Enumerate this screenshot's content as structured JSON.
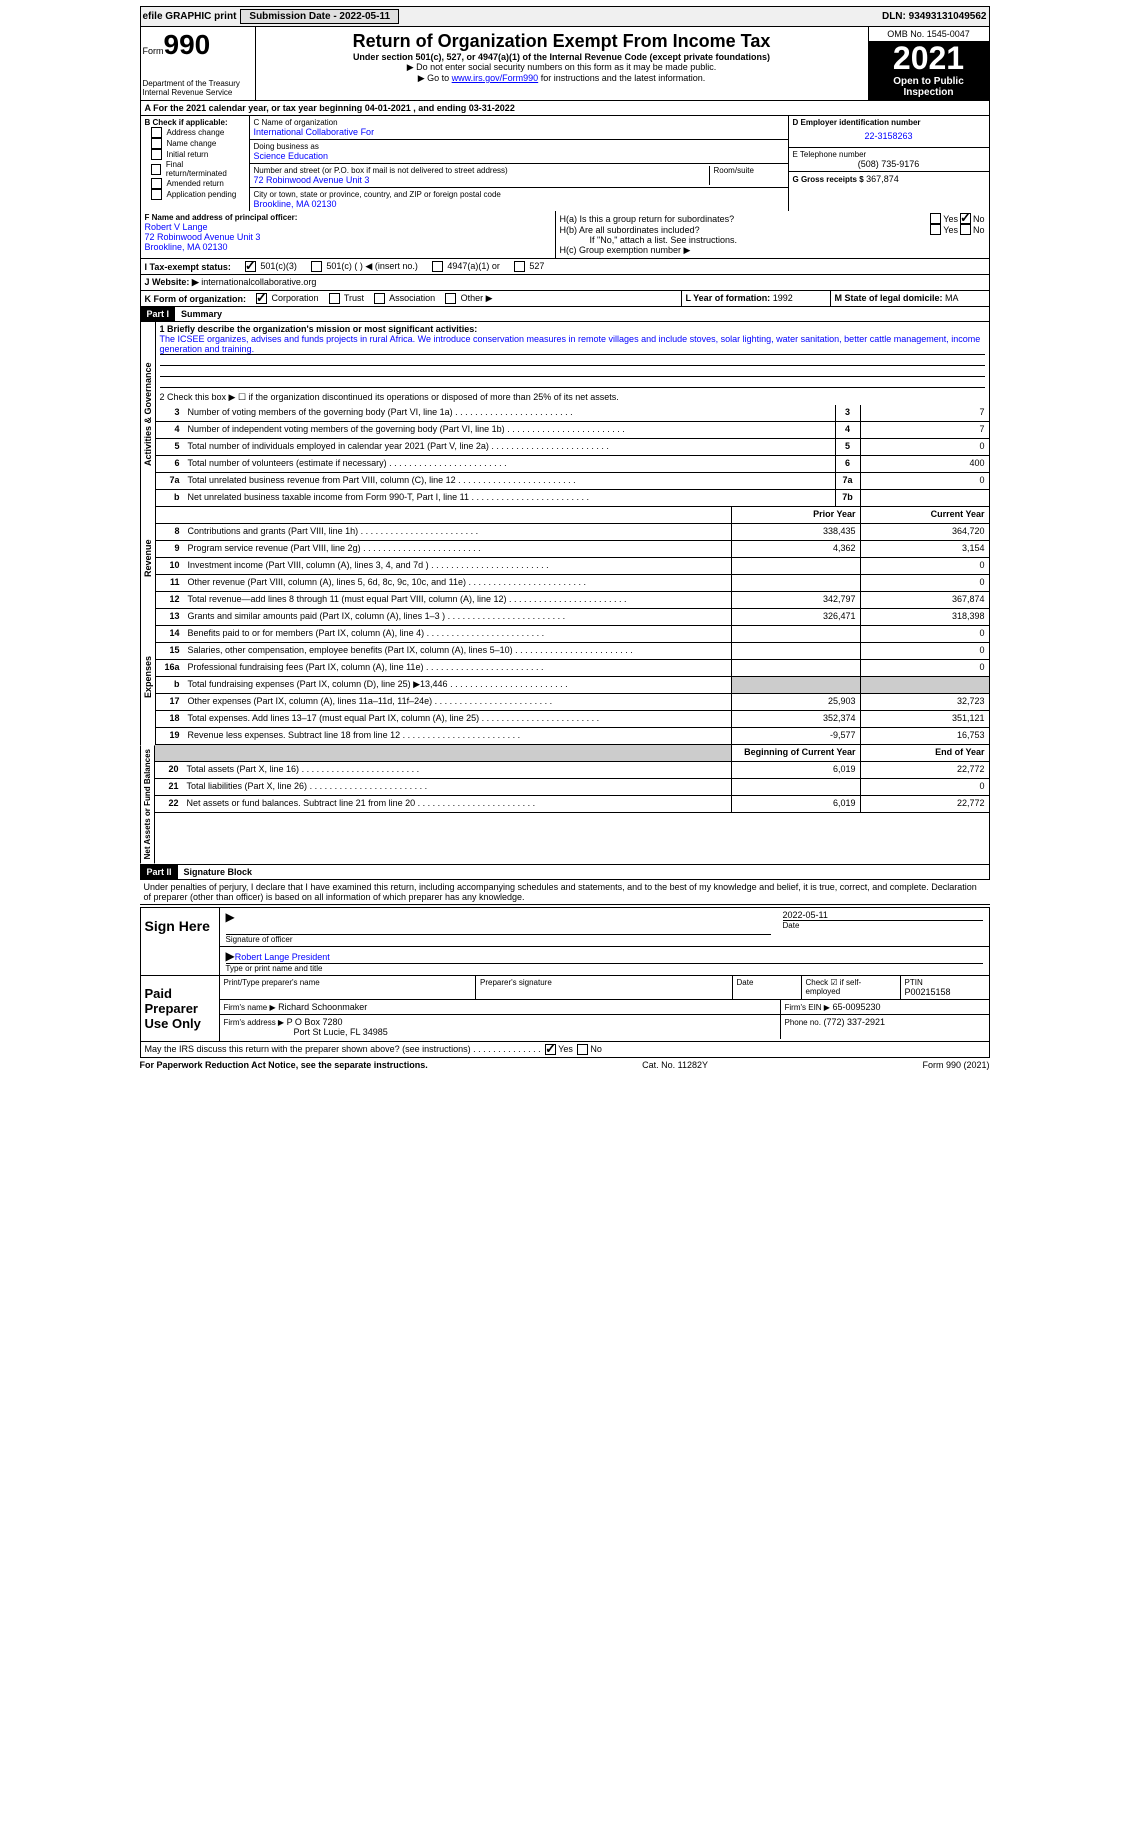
{
  "topbar": {
    "efile": "efile GRAPHIC print",
    "submission_label": "Submission Date - 2022-05-11",
    "dln": "DLN: 93493131049562"
  },
  "header": {
    "form_label": "Form",
    "form_number": "990",
    "dept": "Department of the Treasury",
    "irs": "Internal Revenue Service",
    "title": "Return of Organization Exempt From Income Tax",
    "subtitle": "Under section 501(c), 527, or 4947(a)(1) of the Internal Revenue Code (except private foundations)",
    "instr1": "▶ Do not enter social security numbers on this form as it may be made public.",
    "instr2_pre": "▶ Go to ",
    "instr2_link": "www.irs.gov/Form990",
    "instr2_post": " for instructions and the latest information.",
    "omb": "OMB No. 1545-0047",
    "year": "2021",
    "public": "Open to Public Inspection"
  },
  "line_a": "A For the 2021 calendar year, or tax year beginning 04-01-2021     , and ending 03-31-2022",
  "box_b": {
    "title": "B Check if applicable:",
    "items": [
      "Address change",
      "Name change",
      "Initial return",
      "Final return/terminated",
      "Amended return",
      "Application pending"
    ]
  },
  "box_c": {
    "label_c": "C Name of organization",
    "org_name": "International Collaborative For",
    "dba_label": "Doing business as",
    "dba": "Science Education",
    "street_label": "Number and street (or P.O. box if mail is not delivered to street address)",
    "street": "72 Robinwood Avenue Unit 3",
    "room_label": "Room/suite",
    "city_label": "City or town, state or province, country, and ZIP or foreign postal code",
    "city": "Brookline, MA   02130"
  },
  "box_d": {
    "label": "D Employer identification number",
    "value": "22-3158263"
  },
  "box_e": {
    "label": "E Telephone number",
    "value": "(508) 735-9176"
  },
  "box_g": {
    "label": "G Gross receipts $",
    "value": "367,874"
  },
  "box_f": {
    "label": "F  Name and address of principal officer:",
    "name": "Robert V Lange",
    "addr1": "72 Robinwood Avenue Unit 3",
    "addr2": "Brookline, MA   02130"
  },
  "box_h": {
    "a": "H(a)  Is this a group return for subordinates?",
    "b": "H(b)  Are all subordinates included?",
    "note": "If \"No,\" attach a list. See instructions.",
    "c": "H(c)  Group exemption number ▶"
  },
  "box_i": {
    "label": "I   Tax-exempt status:",
    "opt1": "501(c)(3)",
    "opt2": "501(c) (  ) ◀ (insert no.)",
    "opt3": "4947(a)(1) or",
    "opt4": "527"
  },
  "box_j": {
    "label": "J   Website: ▶",
    "value": "internationalcollaborative.org"
  },
  "box_k": {
    "label": "K Form of organization:",
    "opts": [
      "Corporation",
      "Trust",
      "Association",
      "Other ▶"
    ]
  },
  "box_l": {
    "label": "L Year of formation:",
    "value": "1992"
  },
  "box_m": {
    "label": "M State of legal domicile:",
    "value": "MA"
  },
  "part1": {
    "header": "Part I",
    "title": "Summary",
    "line1_label": "1   Briefly describe the organization's mission or most significant activities:",
    "line1_text": "The ICSEE organizes, advises and funds projects in rural Africa. We introduce conservation measures in remote villages and include stoves, solar lighting, water sanitation, better cattle management, income generation and training.",
    "line2": "2   Check this box ▶ ☐  if the organization discontinued its operations or disposed of more than 25% of its net assets.",
    "vert_activities": "Activities & Governance",
    "vert_revenue": "Revenue",
    "vert_expenses": "Expenses",
    "vert_netassets": "Net Assets or Fund Balances",
    "rows_gov": [
      {
        "n": "3",
        "desc": "Number of voting members of the governing body (Part VI, line 1a)",
        "box": "3",
        "v": "7"
      },
      {
        "n": "4",
        "desc": "Number of independent voting members of the governing body (Part VI, line 1b)",
        "box": "4",
        "v": "7"
      },
      {
        "n": "5",
        "desc": "Total number of individuals employed in calendar year 2021 (Part V, line 2a)",
        "box": "5",
        "v": "0"
      },
      {
        "n": "6",
        "desc": "Total number of volunteers (estimate if necessary)",
        "box": "6",
        "v": "400"
      },
      {
        "n": "7a",
        "desc": "Total unrelated business revenue from Part VIII, column (C), line 12",
        "box": "7a",
        "v": "0"
      },
      {
        "n": "b",
        "desc": "Net unrelated business taxable income from Form 990-T, Part I, line 11",
        "box": "7b",
        "v": ""
      }
    ],
    "hdr_prior": "Prior Year",
    "hdr_current": "Current Year",
    "rows_rev": [
      {
        "n": "8",
        "desc": "Contributions and grants (Part VIII, line 1h)",
        "p": "338,435",
        "c": "364,720"
      },
      {
        "n": "9",
        "desc": "Program service revenue (Part VIII, line 2g)",
        "p": "4,362",
        "c": "3,154"
      },
      {
        "n": "10",
        "desc": "Investment income (Part VIII, column (A), lines 3, 4, and 7d )",
        "p": "",
        "c": "0"
      },
      {
        "n": "11",
        "desc": "Other revenue (Part VIII, column (A), lines 5, 6d, 8c, 9c, 10c, and 11e)",
        "p": "",
        "c": "0"
      },
      {
        "n": "12",
        "desc": "Total revenue—add lines 8 through 11 (must equal Part VIII, column (A), line 12)",
        "p": "342,797",
        "c": "367,874"
      }
    ],
    "rows_exp": [
      {
        "n": "13",
        "desc": "Grants and similar amounts paid (Part IX, column (A), lines 1–3 )",
        "p": "326,471",
        "c": "318,398"
      },
      {
        "n": "14",
        "desc": "Benefits paid to or for members (Part IX, column (A), line 4)",
        "p": "",
        "c": "0"
      },
      {
        "n": "15",
        "desc": "Salaries, other compensation, employee benefits (Part IX, column (A), lines 5–10)",
        "p": "",
        "c": "0"
      },
      {
        "n": "16a",
        "desc": "Professional fundraising fees (Part IX, column (A), line 11e)",
        "p": "",
        "c": "0"
      },
      {
        "n": "b",
        "desc": "Total fundraising expenses (Part IX, column (D), line 25) ▶13,446",
        "p": "shade",
        "c": "shade"
      },
      {
        "n": "17",
        "desc": "Other expenses (Part IX, column (A), lines 11a–11d, 11f–24e)",
        "p": "25,903",
        "c": "32,723"
      },
      {
        "n": "18",
        "desc": "Total expenses. Add lines 13–17 (must equal Part IX, column (A), line 25)",
        "p": "352,374",
        "c": "351,121"
      },
      {
        "n": "19",
        "desc": "Revenue less expenses. Subtract line 18 from line 12",
        "p": "-9,577",
        "c": "16,753"
      }
    ],
    "hdr_begin": "Beginning of Current Year",
    "hdr_end": "End of Year",
    "rows_net": [
      {
        "n": "20",
        "desc": "Total assets (Part X, line 16)",
        "p": "6,019",
        "c": "22,772"
      },
      {
        "n": "21",
        "desc": "Total liabilities (Part X, line 26)",
        "p": "",
        "c": "0"
      },
      {
        "n": "22",
        "desc": "Net assets or fund balances. Subtract line 21 from line 20",
        "p": "6,019",
        "c": "22,772"
      }
    ]
  },
  "part2": {
    "header": "Part II",
    "title": "Signature Block",
    "declaration": "Under penalties of perjury, I declare that I have examined this return, including accompanying schedules and statements, and to the best of my knowledge and belief, it is true, correct, and complete. Declaration of preparer (other than officer) is based on all information of which preparer has any knowledge.",
    "sign_here": "Sign Here",
    "sig_officer": "Signature of officer",
    "sig_date": "2022-05-11",
    "sig_date_label": "Date",
    "sig_name": "Robert Lange  President",
    "sig_name_label": "Type or print name and title",
    "paid_label": "Paid Preparer Use Only",
    "prep_name_label": "Print/Type preparer's name",
    "prep_sig_label": "Preparer's signature",
    "date_label": "Date",
    "check_label": "Check ☑ if self-employed",
    "ptin_label": "PTIN",
    "ptin": "P00215158",
    "firm_name_label": "Firm's name      ▶",
    "firm_name": "Richard Schoonmaker",
    "firm_ein_label": "Firm's EIN ▶",
    "firm_ein": "65-0095230",
    "firm_addr_label": "Firm's address ▶",
    "firm_addr": "P O Box 7280",
    "firm_city": "Port St Lucie, FL   34985",
    "phone_label": "Phone no.",
    "phone": "(772) 337-2921",
    "discuss": "May the IRS discuss this return with the preparer shown above? (see instructions)",
    "yes": "Yes",
    "no": "No"
  },
  "footer": {
    "left": "For Paperwork Reduction Act Notice, see the separate instructions.",
    "mid": "Cat. No. 11282Y",
    "right": "Form 990 (2021)"
  }
}
